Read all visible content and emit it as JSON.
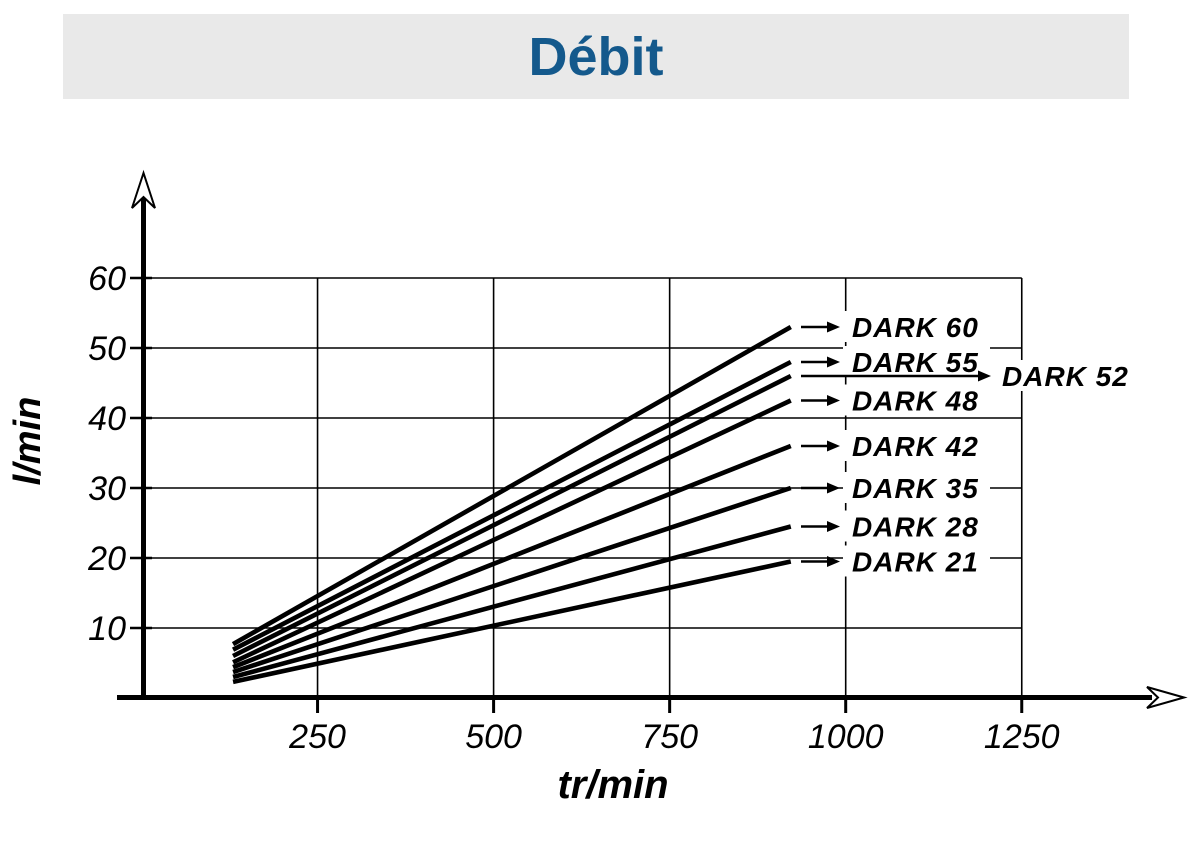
{
  "header": {
    "title": "Débit",
    "title_color": "#14598c",
    "banner_bg": "#e9e9e9"
  },
  "chart_data": {
    "type": "line",
    "title": "Débit",
    "xlabel": "tr/min",
    "ylabel": "l/min",
    "x_ticks": [
      250,
      500,
      750,
      1000,
      1250
    ],
    "y_ticks": [
      10,
      20,
      30,
      40,
      50,
      60
    ],
    "xlim": [
      0,
      1480
    ],
    "ylim": [
      0,
      75
    ],
    "grid": true,
    "legend_position": "right-of-lines",
    "x": [
      130,
      922
    ],
    "series": [
      {
        "name": "DARK 60",
        "values": [
          7.7,
          53.0
        ],
        "label_far": false
      },
      {
        "name": "DARK 55",
        "values": [
          6.9,
          48.0
        ],
        "label_far": false
      },
      {
        "name": "DARK 52",
        "values": [
          6.0,
          46.0
        ],
        "label_far": true
      },
      {
        "name": "DARK 48",
        "values": [
          5.1,
          42.5
        ],
        "label_far": false
      },
      {
        "name": "DARK 42",
        "values": [
          4.4,
          36.0
        ],
        "label_far": false
      },
      {
        "name": "DARK 35",
        "values": [
          3.7,
          30.0
        ],
        "label_far": false
      },
      {
        "name": "DARK 28",
        "values": [
          3.0,
          24.5
        ],
        "label_far": false
      },
      {
        "name": "DARK 21",
        "values": [
          2.3,
          19.5
        ],
        "label_far": false
      }
    ],
    "colors": {
      "line": "#000000",
      "grid": "#000000",
      "text": "#000000"
    }
  }
}
